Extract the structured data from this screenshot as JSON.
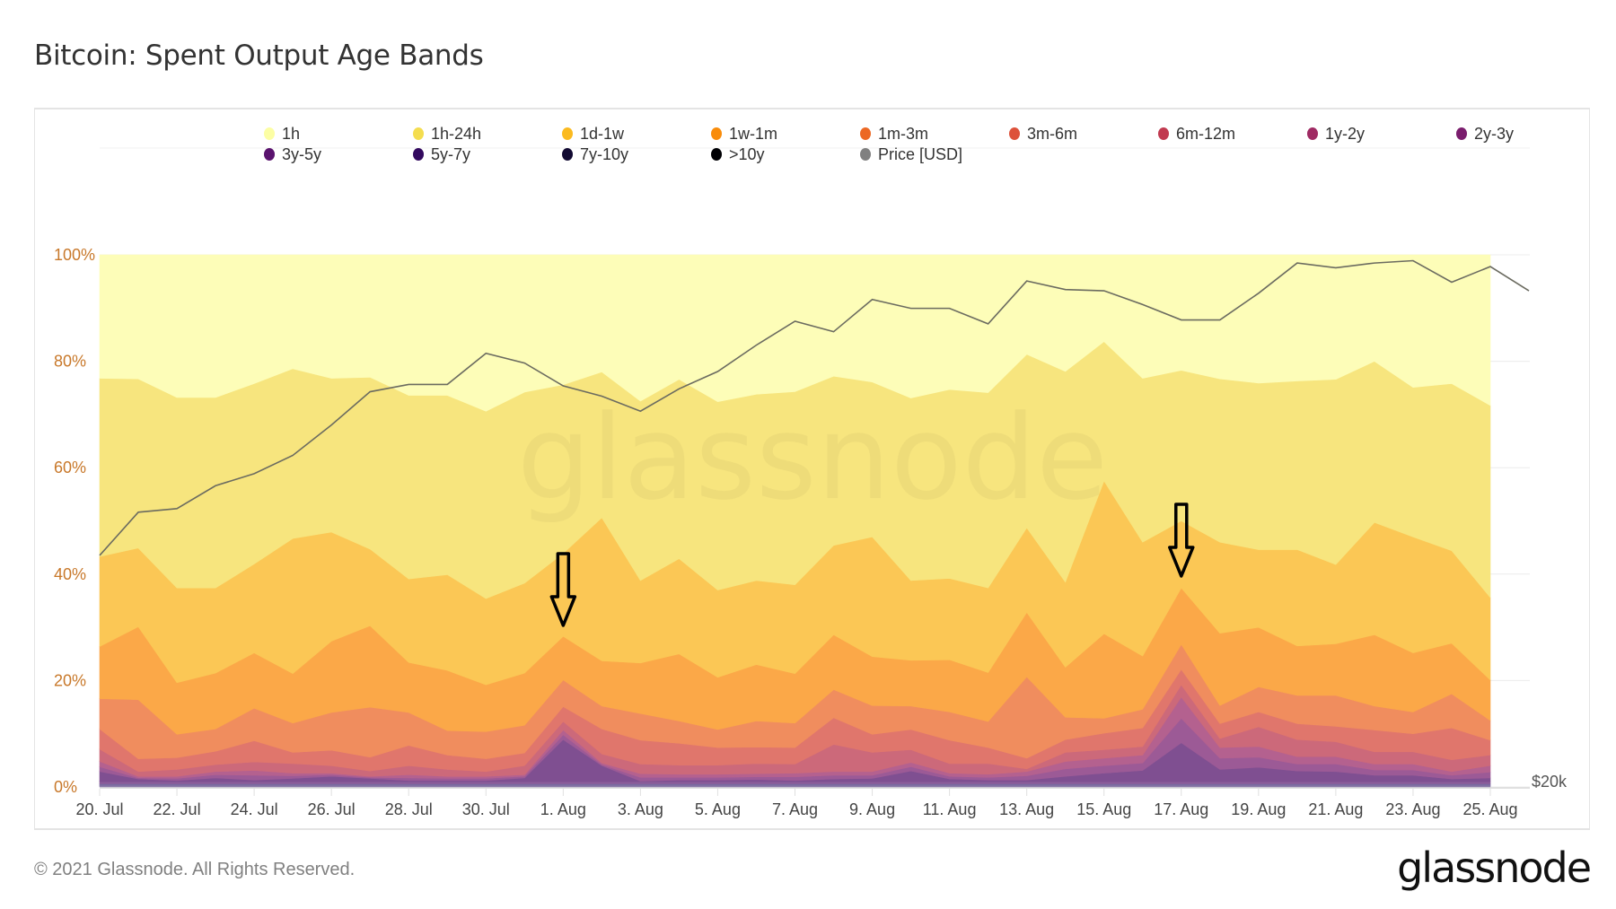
{
  "title": "Bitcoin: Spent Output Age Bands",
  "footer": "© 2021 Glassnode. All Rights Reserved.",
  "logo": "glassnode",
  "watermark": "glassnode",
  "chart_data": {
    "type": "area",
    "stacked": "percent",
    "title": "Bitcoin: Spent Output Age Bands",
    "x": [
      "20. Jul",
      "21. Jul",
      "22. Jul",
      "23. Jul",
      "24. Jul",
      "25. Jul",
      "26. Jul",
      "27. Jul",
      "28. Jul",
      "29. Jul",
      "30. Jul",
      "31. Jul",
      "1. Aug",
      "2. Aug",
      "3. Aug",
      "4. Aug",
      "5. Aug",
      "6. Aug",
      "7. Aug",
      "8. Aug",
      "9. Aug",
      "10. Aug",
      "11. Aug",
      "12. Aug",
      "13. Aug",
      "14. Aug",
      "15. Aug",
      "16. Aug",
      "17. Aug",
      "18. Aug",
      "19. Aug",
      "20. Aug",
      "21. Aug",
      "22. Aug",
      "23. Aug",
      "24. Aug",
      "25. Aug"
    ],
    "x_tick_labels": [
      "20. Jul",
      "22. Jul",
      "24. Jul",
      "26. Jul",
      "28. Jul",
      "30. Jul",
      "1. Aug",
      "3. Aug",
      "5. Aug",
      "7. Aug",
      "9. Aug",
      "11. Aug",
      "13. Aug",
      "15. Aug",
      "17. Aug",
      "19. Aug",
      "21. Aug",
      "23. Aug",
      "25. Aug"
    ],
    "y_tick_labels": [
      "0%",
      "20%",
      "40%",
      "60%",
      "80%",
      "100%"
    ],
    "ylim": [
      0,
      100
    ],
    "grid": true,
    "legend_position": "top",
    "series": [
      {
        "name": "1h",
        "color": "#fcfea4",
        "fill": "#fdfdb8",
        "values": [
          23.2,
          23.3,
          26.8,
          26.8,
          24.2,
          21.4,
          23.2,
          23,
          26.4,
          26.4,
          29.4,
          25.8,
          24.4,
          22,
          27.5,
          23.4,
          27.6,
          26.2,
          25.7,
          22.8,
          23.9,
          26.9,
          25.3,
          25.9,
          18.7,
          21.9,
          16.3,
          23.2,
          21.7,
          23.3,
          24.1,
          23.7,
          23.4,
          20,
          24.9,
          24.2,
          28.3
        ]
      },
      {
        "name": "1h-24h",
        "color": "#f4dd4f",
        "fill": "#f7e57e",
        "values": [
          33.5,
          31.8,
          35.8,
          35.8,
          33.9,
          31.9,
          28.9,
          32.3,
          34.5,
          33.7,
          35.2,
          35.9,
          31.7,
          27.4,
          33.7,
          33.7,
          35.4,
          35,
          36.3,
          31.8,
          29.1,
          34.3,
          35.5,
          36.7,
          32.6,
          39.6,
          26.2,
          30.8,
          28.3,
          30.7,
          31.3,
          31.7,
          34.8,
          30.3,
          28.1,
          31.4,
          36.1
        ]
      },
      {
        "name": "1d-1w",
        "color": "#fbba1f",
        "fill": "#fbc755",
        "values": [
          16.9,
          14.8,
          17.8,
          16,
          16.7,
          25.4,
          20.5,
          14.4,
          15.7,
          18,
          16.2,
          16.9,
          15.6,
          26.9,
          15.5,
          17.9,
          16.4,
          15.8,
          16.7,
          16.8,
          22.5,
          15,
          15.3,
          15.9,
          15.9,
          16,
          28.7,
          21.4,
          12.6,
          17.1,
          14.6,
          18.1,
          14.9,
          21.1,
          21.8,
          17.4,
          15.5
        ]
      },
      {
        "name": "1w-1m",
        "color": "#f98c0a",
        "fill": "#fba848",
        "values": [
          9.8,
          13.7,
          9.7,
          10.5,
          10.4,
          9.3,
          13.4,
          15.3,
          9.4,
          11.3,
          8.8,
          9.8,
          8.2,
          8.5,
          9.5,
          12.6,
          9.8,
          10.6,
          9.3,
          10.3,
          9.2,
          8.6,
          9.8,
          9.2,
          12.1,
          9.4,
          15.9,
          10,
          10.6,
          13.6,
          11.2,
          9.3,
          9.7,
          13.4,
          11.1,
          9.5,
          7.6
        ]
      },
      {
        "name": "1m-3m",
        "color": "#ec6824",
        "fill": "#f08d5e",
        "values": [
          5.7,
          11.1,
          4.4,
          4.2,
          6.1,
          5.5,
          7.1,
          9.4,
          6.2,
          4.6,
          5.1,
          5.2,
          5,
          4.3,
          5,
          4.2,
          3.4,
          4.9,
          4.6,
          5.3,
          5.4,
          4.4,
          5.3,
          4.9,
          15.3,
          4.2,
          2.8,
          3.5,
          4.7,
          3.4,
          4.7,
          5.3,
          5.8,
          4.5,
          4.1,
          6.4,
          3.7
        ]
      },
      {
        "name": "3m-6m",
        "color": "#dd513a",
        "fill": "#e0766c",
        "values": [
          3.8,
          2.4,
          2.2,
          2.5,
          4,
          2.1,
          2.9,
          2.6,
          3.8,
          2.7,
          2.4,
          2.4,
          2.8,
          4.7,
          4.5,
          4.1,
          3.3,
          3.1,
          3.1,
          5,
          3.4,
          3.8,
          4.4,
          3,
          2,
          2.4,
          3.1,
          3.5,
          2.9,
          2.8,
          2.8,
          3,
          2.9,
          4.1,
          3.4,
          6,
          2.8
        ]
      },
      {
        "name": "6m-12m",
        "color": "#c13a50",
        "fill": "#cc697a",
        "values": [
          2.3,
          0.9,
          1.3,
          1.3,
          1.6,
          1.8,
          1.4,
          1,
          1.7,
          1.3,
          0.9,
          1.7,
          1.6,
          1.7,
          1.8,
          1.7,
          1.7,
          1.9,
          1.7,
          5.1,
          3.6,
          2.4,
          1.8,
          2,
          0.5,
          1.7,
          1.6,
          1.6,
          2.3,
          1.7,
          3.7,
          3.2,
          2.8,
          2.3,
          2.3,
          2.2,
          2
        ]
      },
      {
        "name": "1y-2y",
        "color": "#9f2a63",
        "fill": "#b4618f",
        "values": [
          1,
          0.3,
          0.4,
          0.6,
          0.9,
          0.5,
          0.3,
          0.2,
          0.6,
          0.4,
          0.4,
          0.3,
          0.9,
          0.3,
          0.7,
          0.6,
          0.6,
          0.6,
          0.7,
          0.7,
          0.7,
          0.8,
          0.6,
          0.6,
          0.8,
          1.4,
          1.4,
          1.5,
          4,
          2,
          2,
          1.4,
          1.4,
          1.1,
          1.1,
          0.7,
          1.2
        ]
      },
      {
        "name": "2y-3y",
        "color": "#7a1d6d",
        "fill": "#9c5a96",
        "values": [
          0.9,
          0.2,
          0.4,
          0.6,
          0.9,
          0.5,
          0.3,
          0.2,
          0.5,
          0.4,
          0.4,
          0.3,
          0.9,
          0.2,
          0.7,
          0.5,
          0.5,
          0.5,
          0.7,
          0.7,
          0.6,
          0.8,
          0.5,
          0.5,
          0.8,
          1.4,
          1.4,
          1.4,
          4.6,
          2.1,
          1.9,
          1.3,
          1.4,
          1,
          1,
          0.7,
          1.1
        ]
      },
      {
        "name": "3y-5y",
        "color": "#5a136e",
        "fill": "#7f4f91",
        "values": [
          1.9,
          0.5,
          0.2,
          0.7,
          0.3,
          0.6,
          1,
          0.6,
          0.2,
          0.2,
          0.2,
          0.7,
          7.9,
          3,
          0.1,
          0.3,
          0.3,
          0.4,
          0.2,
          0.5,
          0.6,
          2,
          0.5,
          0.3,
          0.3,
          1,
          1.6,
          2.1,
          7.3,
          2.3,
          2.7,
          2,
          1.9,
          1.2,
          1.2,
          0.5,
          0.7
        ]
      },
      {
        "name": "5y-7y",
        "color": "#330a5f",
        "fill": "#8a5c99",
        "values": [
          0.4,
          0.4,
          0.4,
          0.4,
          0.4,
          0.4,
          0.4,
          0.4,
          0.4,
          0.4,
          0.4,
          0.4,
          0.4,
          0.4,
          0.4,
          0.4,
          0.4,
          0.4,
          0.4,
          0.4,
          0.4,
          0.4,
          0.4,
          0.4,
          0.4,
          0.4,
          0.4,
          0.4,
          0.4,
          0.4,
          0.4,
          0.4,
          0.4,
          0.4,
          0.4,
          0.4,
          0.4
        ]
      },
      {
        "name": "7y-10y",
        "color": "#120a32",
        "fill": "#7a6aa0",
        "values": [
          0.3,
          0.3,
          0.3,
          0.3,
          0.3,
          0.3,
          0.3,
          0.3,
          0.3,
          0.3,
          0.3,
          0.3,
          0.3,
          0.3,
          0.3,
          0.3,
          0.3,
          0.3,
          0.3,
          0.3,
          0.3,
          0.3,
          0.3,
          0.3,
          0.3,
          0.3,
          0.3,
          0.3,
          0.3,
          0.3,
          0.3,
          0.3,
          0.3,
          0.3,
          0.3,
          0.3,
          0.3
        ]
      },
      {
        "name": ">10y",
        "color": "#000004",
        "fill": "#8a7aa8",
        "values": [
          0.3,
          0.3,
          0.3,
          0.3,
          0.3,
          0.3,
          0.3,
          0.3,
          0.3,
          0.3,
          0.3,
          0.3,
          0.3,
          0.3,
          0.3,
          0.3,
          0.3,
          0.3,
          0.3,
          0.3,
          0.3,
          0.3,
          0.3,
          0.3,
          0.3,
          0.3,
          0.3,
          0.3,
          0.3,
          0.3,
          0.3,
          0.3,
          0.3,
          0.3,
          0.3,
          0.3,
          0.3
        ]
      }
    ],
    "price": {
      "name": "Price [USD]",
      "color": "#808080",
      "line_color": "#6b6b60",
      "axis": "right",
      "scale": "log",
      "ylim": [
        20000,
        50000
      ],
      "tick_labels": [
        "$20k"
      ],
      "x": [
        "20. Jul",
        "21. Jul",
        "22. Jul",
        "23. Jul",
        "24. Jul",
        "25. Jul",
        "26. Jul",
        "27. Jul",
        "28. Jul",
        "29. Jul",
        "30. Jul",
        "31. Jul",
        "1. Aug",
        "2. Aug",
        "3. Aug",
        "4. Aug",
        "5. Aug",
        "6. Aug",
        "7. Aug",
        "8. Aug",
        "9. Aug",
        "10. Aug",
        "11. Aug",
        "12. Aug",
        "13. Aug",
        "14. Aug",
        "15. Aug",
        "16. Aug",
        "17. Aug",
        "18. Aug",
        "19. Aug",
        "20. Aug",
        "21. Aug",
        "22. Aug",
        "23. Aug",
        "24. Aug",
        "25. Aug",
        "26. Aug"
      ],
      "values": [
        29800,
        32100,
        32300,
        33600,
        34300,
        35400,
        37300,
        39500,
        40000,
        40000,
        42200,
        41500,
        39900,
        39200,
        38200,
        39700,
        40900,
        42800,
        44600,
        43800,
        46300,
        45600,
        45600,
        44400,
        47800,
        47100,
        47000,
        45900,
        44700,
        44700,
        46800,
        49300,
        48900,
        49300,
        49500,
        47700,
        49000,
        47000
      ]
    },
    "annotations": [
      {
        "type": "arrow-down",
        "x": "1. Aug"
      },
      {
        "type": "arrow-down",
        "x": "17. Aug"
      }
    ]
  }
}
